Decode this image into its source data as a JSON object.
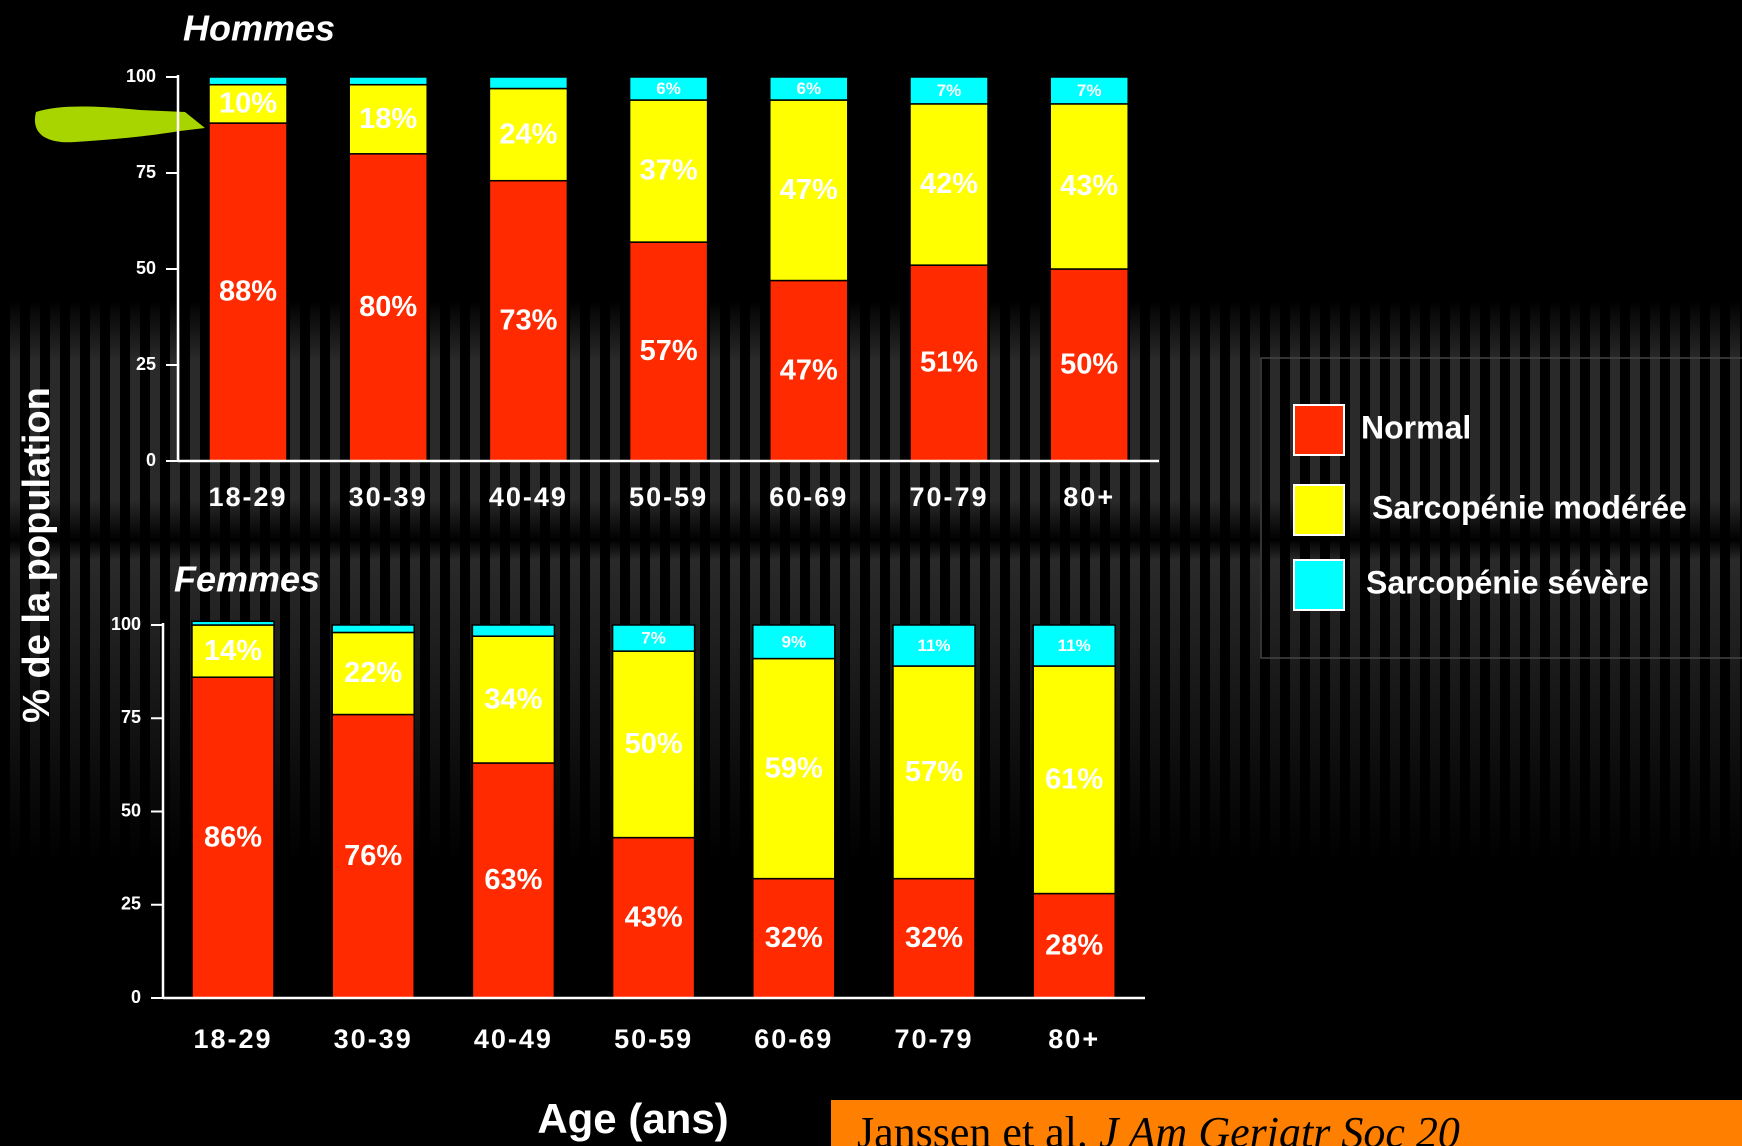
{
  "chart_data": [
    {
      "type": "stacked-bar",
      "title": "Hommes",
      "ylabel": "% de la population",
      "legend": "right",
      "categories": [
        "18-29",
        "30-39",
        "40-49",
        "50-59",
        "60-69",
        "70-79",
        "80+"
      ],
      "series": [
        {
          "name": "Normal",
          "color": "#ff2a00",
          "values": [
            88,
            80,
            73,
            57,
            47,
            51,
            50
          ],
          "value_labels": [
            "88%",
            "80%",
            "73%",
            "57%",
            "47%",
            "51%",
            "50%"
          ]
        },
        {
          "name": "Sarcopénie modérée",
          "color": "#ffff00",
          "values": [
            10,
            18,
            24,
            37,
            47,
            42,
            43
          ],
          "value_labels": [
            "10%",
            "18%",
            "24%",
            "37%",
            "47%",
            "42%",
            "43%"
          ]
        },
        {
          "name": "Sarcopénie sévère",
          "color": "#00ffff",
          "values": [
            2,
            2,
            3,
            6,
            6,
            7,
            7
          ],
          "value_labels": [
            null,
            null,
            null,
            "6%",
            "6%",
            "7%",
            "7%"
          ]
        }
      ],
      "ylim": [
        0,
        100
      ],
      "yticks": [
        0,
        25,
        50,
        75,
        100
      ]
    },
    {
      "type": "stacked-bar",
      "title": "Femmes",
      "xlabel": "Age (ans)",
      "categories": [
        "18-29",
        "30-39",
        "40-49",
        "50-59",
        "60-69",
        "70-79",
        "80+"
      ],
      "series": [
        {
          "color": "#ff2a00",
          "values": [
            86,
            76,
            63,
            43,
            32,
            32,
            28
          ],
          "value_labels": [
            "86%",
            "76%",
            "63%",
            "43%",
            "32%",
            "32%",
            "28%"
          ]
        },
        {
          "color": "#ffff00",
          "values": [
            14,
            22,
            34,
            50,
            59,
            57,
            61
          ],
          "value_labels": [
            "14%",
            "22%",
            "34%",
            "50%",
            "59%",
            "57%",
            "61%"
          ]
        },
        {
          "color": "#00ffff",
          "values": [
            1,
            2,
            3,
            7,
            9,
            11,
            11
          ],
          "value_labels": [
            null,
            null,
            null,
            "7%",
            "9%",
            "11%",
            "11%"
          ]
        }
      ],
      "ylim": [
        0,
        100
      ],
      "yticks": [
        0,
        25,
        50,
        75,
        100
      ]
    }
  ],
  "citation": {
    "authors": "Janssen et al. ",
    "journal": "J Am Geriatr Soc 20"
  }
}
